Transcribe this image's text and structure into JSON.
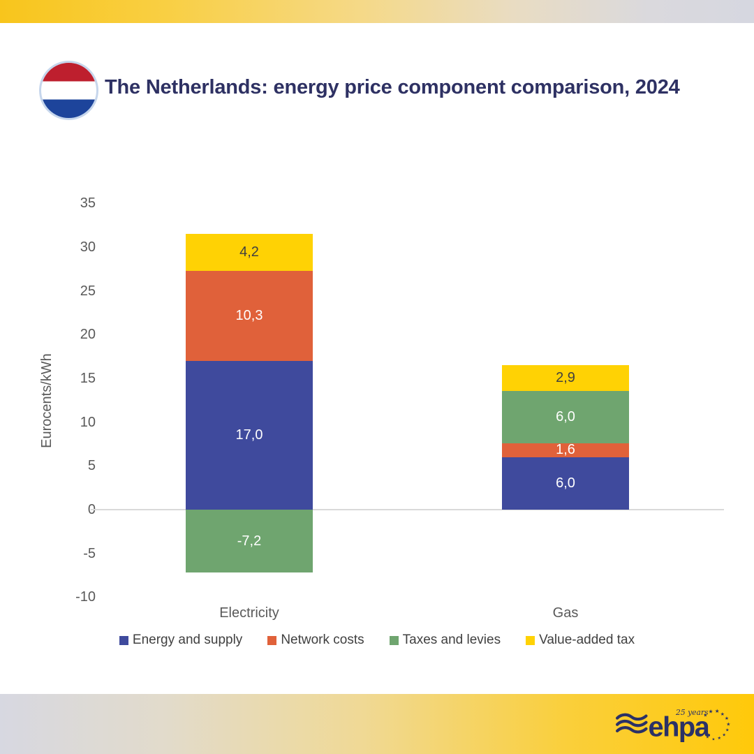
{
  "header": {
    "title": "The Netherlands: energy price component comparison, 2024",
    "flag": {
      "country": "Netherlands",
      "colors": {
        "red": "#BE1F2E",
        "white": "#FFFFFF",
        "blue": "#1D449B",
        "ring": "#C6D6EC"
      }
    }
  },
  "chart_data": {
    "type": "bar",
    "stacked": true,
    "title": "The Netherlands: energy price component comparison, 2024",
    "categories": [
      "Electricity",
      "Gas"
    ],
    "series": [
      {
        "name": "Energy and supply",
        "color": "#3F4A9D",
        "values": [
          17.0,
          6.0
        ],
        "labels": [
          "17,0",
          "6,0"
        ],
        "label_color": "#FFFFFF"
      },
      {
        "name": "Network costs",
        "color": "#E0613A",
        "values": [
          10.3,
          1.6
        ],
        "labels": [
          "10,3",
          "1,6"
        ],
        "label_color": "#FFFFFF"
      },
      {
        "name": "Taxes and levies",
        "color": "#6FA56F",
        "values": [
          -7.2,
          6.0
        ],
        "labels": [
          "-7,2",
          "6,0"
        ],
        "label_color": "#FFFFFF"
      },
      {
        "name": "Value-added tax",
        "color": "#FFD204",
        "values": [
          4.2,
          2.9
        ],
        "labels": [
          "4,2",
          "2,9"
        ],
        "label_color": "#404040"
      }
    ],
    "xlabel": "",
    "ylabel": "Eurocents/kWh",
    "ylim": [
      -10,
      35
    ],
    "yticks": [
      35,
      30,
      25,
      20,
      15,
      10,
      5,
      0,
      -5,
      -10
    ],
    "grid": false,
    "zero_line": true,
    "legend_position": "bottom"
  },
  "footer": {
    "logo": {
      "text": "ehpa",
      "badge": "25 years"
    }
  },
  "colors": {
    "title_text": "#2E3163",
    "axis_text": "#595959",
    "legend_text": "#404040",
    "zero_line": "#D9D9D9",
    "logo_navy": "#2B3166",
    "top_bar_gradient": [
      "#F8C51C",
      "#D6D7E0"
    ],
    "bottom_bar_gradient": [
      "#D7D8E1",
      "#FFC90A"
    ]
  }
}
